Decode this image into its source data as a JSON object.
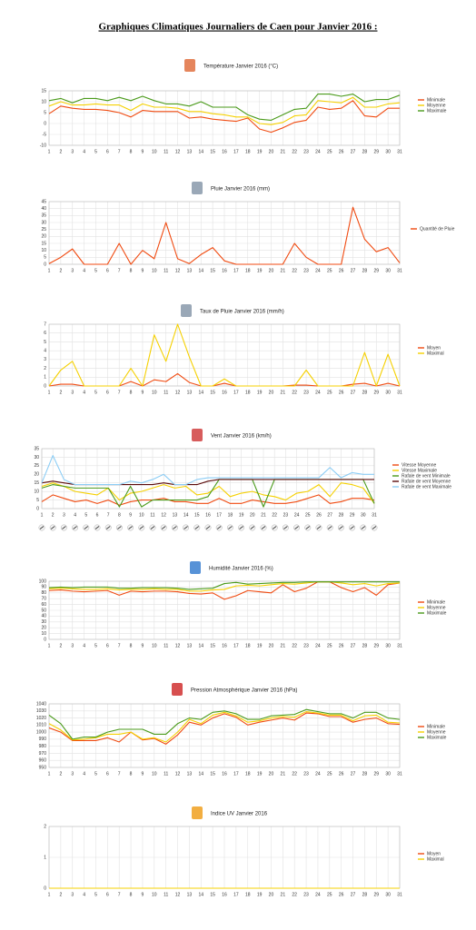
{
  "title": "Graphiques Climatiques Journaliers de Caen pour Janvier 2016 :",
  "chart_data": [
    {
      "type": "line",
      "title": "Température Janvier 2016 (°C)",
      "grid": true,
      "legend": "right",
      "categories": [
        "1",
        "2",
        "3",
        "4",
        "5",
        "6",
        "7",
        "8",
        "9",
        "10",
        "11",
        "12",
        "13",
        "14",
        "15",
        "16",
        "17",
        "18",
        "19",
        "20",
        "21",
        "22",
        "23",
        "24",
        "25",
        "26",
        "27",
        "28",
        "29",
        "30",
        "31"
      ],
      "ylim": [
        -10,
        15
      ],
      "yticks": [
        -10,
        -5,
        0,
        5,
        10,
        15
      ],
      "series": [
        {
          "name": "Minimale",
          "color": "#f04a10",
          "values": [
            4.5,
            8,
            7,
            6.5,
            6.5,
            6,
            5,
            3,
            6,
            5.5,
            5.5,
            5.5,
            2.5,
            3,
            2,
            1.5,
            1,
            2.5,
            -2.5,
            -4,
            -2,
            0.5,
            1.5,
            7.5,
            6.5,
            7,
            10.5,
            3.5,
            3,
            7,
            7
          ]
        },
        {
          "name": "Moyenne",
          "color": "#f5d000",
          "values": [
            8,
            10,
            8.5,
            8.5,
            9,
            8.5,
            8.5,
            6,
            9,
            7.5,
            7.5,
            7,
            5.5,
            5.5,
            4.5,
            4,
            3,
            3,
            0,
            -0.5,
            0.5,
            3.5,
            4,
            10.5,
            10,
            9.5,
            12,
            7.5,
            7.5,
            9,
            9.5
          ]
        },
        {
          "name": "Maximale",
          "color": "#4a9a1a",
          "values": [
            10.5,
            11.5,
            9.5,
            11.5,
            11.5,
            10.5,
            12,
            10.5,
            12.5,
            10.5,
            9,
            9,
            8,
            10,
            7.5,
            7.5,
            7.5,
            4,
            2,
            1.5,
            4,
            6.5,
            7,
            13.5,
            13.5,
            12.5,
            13.5,
            10,
            11,
            11,
            13
          ]
        }
      ]
    },
    {
      "type": "line",
      "title": "Pluie Janvier 2016 (mm)",
      "grid": true,
      "legend": "right",
      "categories": [
        "1",
        "2",
        "3",
        "4",
        "5",
        "6",
        "7",
        "8",
        "9",
        "10",
        "11",
        "12",
        "13",
        "14",
        "15",
        "16",
        "17",
        "18",
        "19",
        "20",
        "21",
        "22",
        "23",
        "24",
        "25",
        "26",
        "27",
        "28",
        "29",
        "30",
        "31"
      ],
      "ylim": [
        0,
        45
      ],
      "yticks": [
        0,
        5,
        10,
        15,
        20,
        25,
        30,
        35,
        40,
        45
      ],
      "series": [
        {
          "name": "Quantité de Pluie",
          "color": "#f04a10",
          "values": [
            0.5,
            5,
            11,
            0,
            0,
            0,
            15,
            0,
            10,
            4,
            30,
            4,
            0.5,
            7,
            12,
            2.5,
            0,
            0,
            0,
            0,
            0,
            15,
            5,
            0,
            0,
            0,
            41,
            18,
            9,
            12,
            1
          ]
        }
      ]
    },
    {
      "type": "line",
      "title": "Taux de Pluie Janvier 2016 (mm/h)",
      "grid": true,
      "legend": "right",
      "categories": [
        "1",
        "2",
        "3",
        "4",
        "5",
        "6",
        "7",
        "8",
        "9",
        "10",
        "11",
        "12",
        "13",
        "14",
        "15",
        "16",
        "17",
        "18",
        "19",
        "20",
        "21",
        "22",
        "23",
        "24",
        "25",
        "26",
        "27",
        "28",
        "29",
        "30",
        "31"
      ],
      "ylim": [
        0,
        7
      ],
      "yticks": [
        0,
        1,
        2,
        3,
        4,
        5,
        6,
        7
      ],
      "series": [
        {
          "name": "Moyen",
          "color": "#f04a10",
          "values": [
            0,
            0.2,
            0.2,
            0,
            0,
            0,
            0,
            0.5,
            0,
            0.7,
            0.5,
            1.4,
            0.4,
            0,
            0,
            0.3,
            0,
            0,
            0,
            0,
            0,
            0.1,
            0.1,
            0,
            0,
            0,
            0.2,
            0.3,
            0,
            0.3,
            0
          ]
        },
        {
          "name": "Maximal",
          "color": "#f5d000",
          "values": [
            0,
            1.8,
            2.8,
            0,
            0,
            0,
            0,
            2,
            0,
            5.8,
            2.8,
            7,
            3.3,
            0,
            0,
            0.8,
            0,
            0,
            0,
            0,
            0,
            0,
            1.8,
            0,
            0,
            0,
            0,
            3.8,
            0,
            3.6,
            0
          ]
        }
      ]
    },
    {
      "type": "line",
      "title": "Vent Janvier 2016 (km/h)",
      "grid": true,
      "legend": "right",
      "categories": [
        "1",
        "2",
        "3",
        "4",
        "5",
        "6",
        "7",
        "8",
        "9",
        "10",
        "11",
        "12",
        "13",
        "14",
        "15",
        "16",
        "17",
        "18",
        "19",
        "20",
        "21",
        "22",
        "23",
        "24",
        "25",
        "26",
        "27",
        "28",
        "29",
        "30",
        "31"
      ],
      "ylim": [
        0,
        35
      ],
      "yticks": [
        0,
        5,
        10,
        15,
        20,
        25,
        30,
        35
      ],
      "series": [
        {
          "name": "Vitesse Moyenne",
          "color": "#f04a10",
          "values": [
            4,
            8,
            6,
            4,
            5,
            3,
            5,
            2,
            4,
            5,
            5,
            6,
            4,
            4,
            3,
            3,
            6,
            3,
            3,
            5,
            4,
            3,
            3,
            4,
            6,
            8,
            3,
            4,
            6,
            6,
            5
          ]
        },
        {
          "name": "Vitesse Maximale",
          "color": "#f5d000",
          "values": [
            13,
            15,
            13,
            10,
            9,
            8,
            12,
            5,
            9,
            10,
            12,
            14,
            12,
            13,
            8,
            9,
            13,
            7,
            9,
            10,
            8,
            7,
            5,
            9,
            10,
            14,
            7,
            15,
            14,
            12,
            3
          ]
        },
        {
          "name": "Rafale de vent Minimale",
          "color": "#4a9a1a",
          "values": [
            12,
            14,
            13,
            12,
            12,
            12,
            12,
            1,
            13,
            1,
            5,
            5,
            5,
            5,
            5,
            7,
            17,
            17,
            17,
            17,
            1,
            17,
            17,
            17,
            17,
            17,
            17,
            17,
            17,
            17,
            3
          ]
        },
        {
          "name": "Rafale de vent Moyenne",
          "color": "#5a0a0a",
          "values": [
            15,
            16,
            15,
            14,
            14,
            14,
            14,
            14,
            14,
            14,
            14,
            15,
            14,
            14,
            14,
            16,
            17,
            17,
            17,
            17,
            17,
            17,
            17,
            17,
            17,
            17,
            17,
            17,
            17,
            17,
            17
          ]
        },
        {
          "name": "Rafale de vent Maximale",
          "color": "#8ccdf5",
          "values": [
            15,
            31,
            17,
            14,
            14,
            14,
            14,
            14,
            16,
            15,
            17,
            20,
            14,
            14,
            17,
            18,
            18,
            18,
            18,
            18,
            18,
            18,
            18,
            18,
            18,
            18,
            24,
            18,
            21,
            20,
            20
          ]
        }
      ]
    },
    {
      "type": "line",
      "title": "Humidité Janvier 2016 (%)",
      "grid": true,
      "legend": "right",
      "categories": [
        "1",
        "2",
        "3",
        "4",
        "5",
        "6",
        "7",
        "8",
        "9",
        "10",
        "11",
        "12",
        "13",
        "14",
        "15",
        "16",
        "17",
        "18",
        "19",
        "20",
        "21",
        "22",
        "23",
        "24",
        "25",
        "26",
        "27",
        "28",
        "29",
        "30",
        "31"
      ],
      "ylim": [
        0,
        100
      ],
      "yticks": [
        0,
        10,
        20,
        30,
        40,
        50,
        60,
        70,
        80,
        90,
        100
      ],
      "series": [
        {
          "name": "Minimale",
          "color": "#f04a10",
          "values": [
            84,
            85,
            83,
            82,
            83,
            84,
            76,
            83,
            82,
            83,
            83,
            82,
            79,
            78,
            80,
            69,
            75,
            84,
            82,
            80,
            94,
            82,
            88,
            99,
            99,
            89,
            82,
            89,
            76,
            94,
            97
          ]
        },
        {
          "name": "Moyenne",
          "color": "#f5d000",
          "values": [
            87,
            88,
            87,
            86,
            86,
            87,
            85,
            86,
            86,
            87,
            86,
            86,
            83,
            83,
            85,
            86,
            92,
            93,
            92,
            94,
            96,
            95,
            97,
            99,
            99,
            97,
            94,
            96,
            92,
            96,
            97
          ]
        },
        {
          "name": "Maximale",
          "color": "#4a9a1a",
          "values": [
            89,
            90,
            89,
            90,
            90,
            90,
            88,
            88,
            89,
            89,
            89,
            88,
            86,
            87,
            88,
            96,
            98,
            95,
            96,
            97,
            98,
            98,
            99,
            99,
            99,
            99,
            99,
            99,
            99,
            99,
            99
          ]
        }
      ]
    },
    {
      "type": "line",
      "title": "Pression Atmosphérique Janvier 2016 (hPa)",
      "grid": true,
      "legend": "right",
      "categories": [
        "1",
        "2",
        "3",
        "4",
        "5",
        "6",
        "7",
        "8",
        "9",
        "10",
        "11",
        "12",
        "13",
        "14",
        "15",
        "16",
        "17",
        "18",
        "19",
        "20",
        "21",
        "22",
        "23",
        "24",
        "25",
        "26",
        "27",
        "28",
        "29",
        "30",
        "31"
      ],
      "ylim": [
        950,
        1040
      ],
      "yticks": [
        950,
        960,
        970,
        980,
        990,
        1000,
        1010,
        1020,
        1030,
        1040
      ],
      "series": [
        {
          "name": "Minimale",
          "color": "#f04a10",
          "values": [
            1006,
            1000,
            988,
            988,
            988,
            992,
            986,
            1000,
            989,
            991,
            983,
            996,
            1014,
            1010,
            1020,
            1026,
            1021,
            1010,
            1014,
            1017,
            1020,
            1017,
            1027,
            1026,
            1022,
            1022,
            1014,
            1018,
            1020,
            1012,
            1011
          ]
        },
        {
          "name": "Moyenne",
          "color": "#f5d000",
          "values": [
            1012,
            1003,
            989,
            990,
            992,
            997,
            997,
            1000,
            990,
            992,
            986,
            1000,
            1018,
            1012,
            1024,
            1028,
            1023,
            1014,
            1016,
            1020,
            1022,
            1021,
            1029,
            1027,
            1024,
            1024,
            1016,
            1023,
            1024,
            1014,
            1013
          ]
        },
        {
          "name": "Maximale",
          "color": "#4a9a1a",
          "values": [
            1024,
            1012,
            990,
            993,
            993,
            1000,
            1004,
            1004,
            1004,
            997,
            997,
            1012,
            1020,
            1018,
            1028,
            1030,
            1026,
            1018,
            1018,
            1023,
            1024,
            1025,
            1032,
            1029,
            1026,
            1026,
            1020,
            1028,
            1028,
            1020,
            1018
          ]
        }
      ]
    },
    {
      "type": "line",
      "title": "Indice UV Janvier 2016",
      "grid": true,
      "legend": "right",
      "categories": [
        "1",
        "2",
        "3",
        "4",
        "5",
        "6",
        "7",
        "8",
        "9",
        "10",
        "11",
        "12",
        "13",
        "14",
        "15",
        "16",
        "17",
        "18",
        "19",
        "20",
        "21",
        "22",
        "23",
        "24",
        "25",
        "26",
        "27",
        "28",
        "29",
        "30",
        "31"
      ],
      "ylim": [
        0,
        2
      ],
      "yticks": [
        0,
        1,
        2
      ],
      "series": [
        {
          "name": "Moyen",
          "color": "#f04a10",
          "values": [
            0,
            0,
            0,
            0,
            0,
            0,
            0,
            0,
            0,
            0,
            0,
            0,
            0,
            0,
            0,
            0,
            0,
            0,
            0,
            0,
            0,
            0,
            0,
            0,
            0,
            0,
            0,
            0,
            0,
            0,
            0
          ]
        },
        {
          "name": "Maximal",
          "color": "#f5d000",
          "values": [
            0,
            0,
            0,
            0,
            0,
            0,
            0,
            0,
            0,
            0,
            0,
            0,
            0,
            0,
            0,
            0,
            0,
            0,
            0,
            0,
            0,
            0,
            0,
            0,
            0,
            0,
            0,
            0,
            0,
            0,
            0
          ]
        }
      ]
    }
  ]
}
